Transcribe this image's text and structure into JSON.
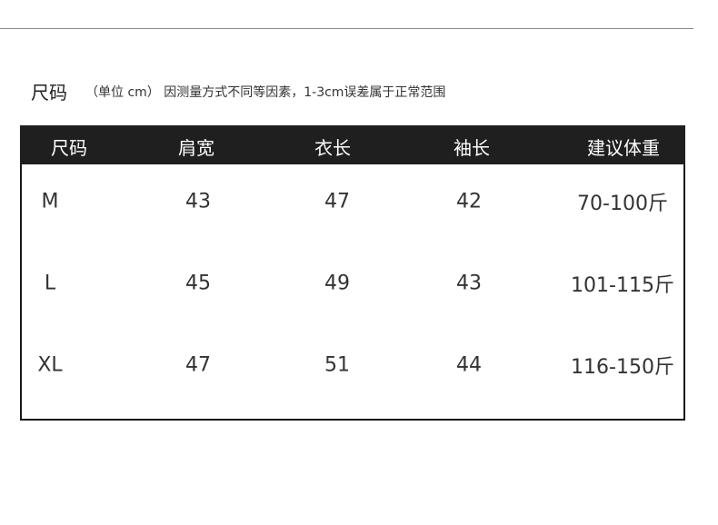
{
  "title": "尺码",
  "note": "（单位 cm） 因测量方式不同等因素，1-3cm误差属于正常范围",
  "table": {
    "headers": [
      "尺码",
      "肩宽",
      "衣长",
      "袖长",
      "建议体重"
    ],
    "rows": [
      [
        "M",
        "43",
        "47",
        "42",
        "70-100斤"
      ],
      [
        "L",
        "45",
        "49",
        "43",
        "101-115斤"
      ],
      [
        "XL",
        "47",
        "51",
        "44",
        "116-150斤"
      ]
    ]
  },
  "colors": {
    "header_bg": "#1f1f1f",
    "header_text": "#ffffff",
    "border": "#1a1a1a"
  }
}
